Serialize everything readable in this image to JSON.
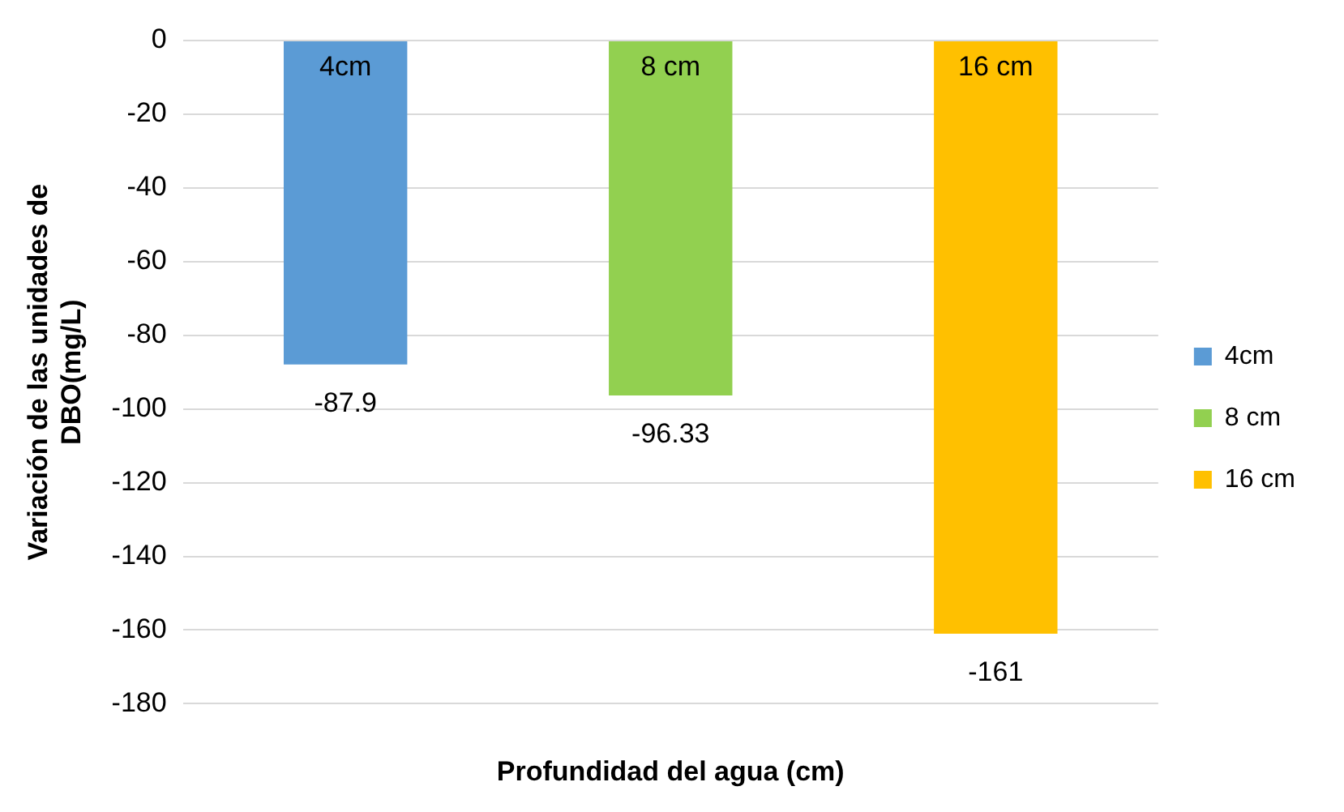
{
  "chart_data": {
    "type": "bar",
    "xlabel": "Profundidad del agua (cm)",
    "ylabel": "Variación de las unidades de DBO(mg/L)",
    "categories": [
      null
    ],
    "series": [
      {
        "name": "4cm",
        "color": "#5b9bd5",
        "values": [
          -87.9
        ]
      },
      {
        "name": "8 cm",
        "color": "#92d050",
        "values": [
          -96.33
        ]
      },
      {
        "name": "16 cm",
        "color": "#ffc000",
        "values": [
          -161
        ]
      }
    ],
    "ylim": [
      -180,
      0
    ],
    "yticks": [
      0,
      -20,
      -40,
      -60,
      -80,
      -100,
      -120,
      -140,
      -160,
      -180
    ],
    "grid": "y",
    "legend": "right",
    "data_labels": true
  }
}
